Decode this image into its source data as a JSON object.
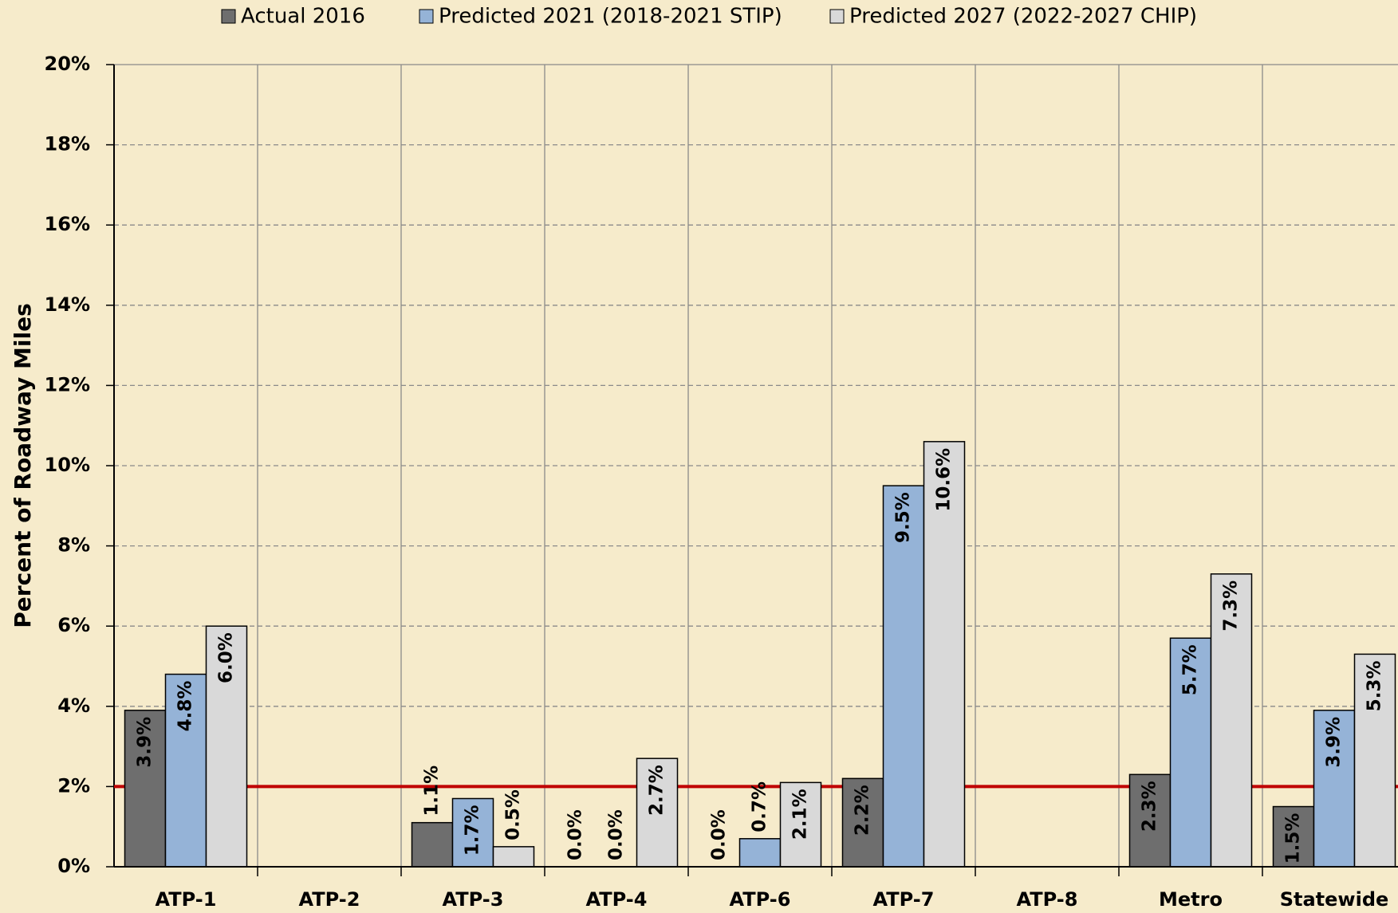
{
  "chart_data": {
    "type": "bar",
    "y_label": "Percent of Roadway Miles",
    "categories": [
      "ATP-1",
      "ATP-2",
      "ATP-3",
      "ATP-4",
      "ATP-6",
      "ATP-7",
      "ATP-8",
      "Metro",
      "Statewide"
    ],
    "series": [
      {
        "name": "Actual 2016",
        "color": "#6e6e6e",
        "values": [
          3.9,
          null,
          1.1,
          0.0,
          0.0,
          2.2,
          null,
          2.3,
          1.5
        ],
        "value_labels": [
          "3.9%",
          null,
          "1.1%",
          "0.0%",
          "0.0%",
          "2.2%",
          null,
          "2.3%",
          "1.5%"
        ]
      },
      {
        "name": "Predicted 2021 (2018-2021 STIP)",
        "color": "#95b3d7",
        "values": [
          4.8,
          null,
          1.7,
          0.0,
          0.7,
          9.5,
          null,
          5.7,
          3.9
        ],
        "value_labels": [
          "4.8%",
          null,
          "1.7%",
          "0.0%",
          "0.7%",
          "9.5%",
          null,
          "5.7%",
          "3.9%"
        ]
      },
      {
        "name": "Predicted 2027 (2022-2027 CHIP)",
        "color": "#d9d9d9",
        "values": [
          6.0,
          null,
          0.5,
          2.7,
          2.1,
          10.6,
          null,
          7.3,
          5.3
        ],
        "value_labels": [
          "6.0%",
          null,
          "0.5%",
          "2.7%",
          "2.1%",
          "10.6%",
          null,
          "7.3%",
          "5.3%"
        ]
      }
    ],
    "ylim": [
      0,
      20
    ],
    "yticks": [
      {
        "value": 0,
        "label": "0%"
      },
      {
        "value": 2,
        "label": "2%"
      },
      {
        "value": 4,
        "label": "4%"
      },
      {
        "value": 6,
        "label": "6%"
      },
      {
        "value": 8,
        "label": "8%"
      },
      {
        "value": 10,
        "label": "10%"
      },
      {
        "value": 12,
        "label": "12%"
      },
      {
        "value": 14,
        "label": "14%"
      },
      {
        "value": 16,
        "label": "16%"
      },
      {
        "value": 18,
        "label": "18%"
      },
      {
        "value": 20,
        "label": "20%"
      }
    ],
    "grid": true,
    "legend": "top",
    "reference_line": {
      "value": 2,
      "color": "#c00000"
    }
  }
}
